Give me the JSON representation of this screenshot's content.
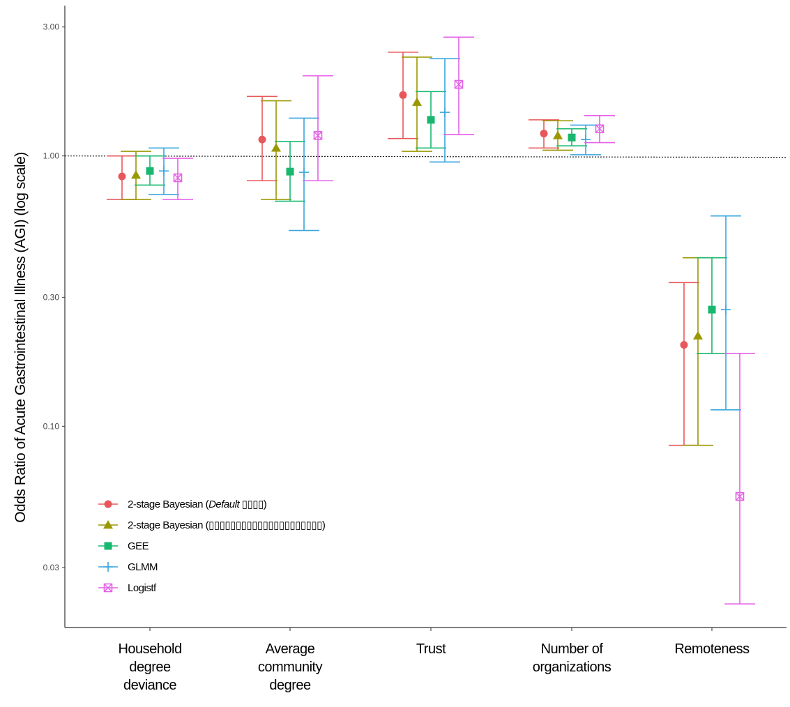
{
  "chart_data": {
    "type": "scatter",
    "subtype": "point-range (odds ratios with confidence intervals)",
    "ylabel": "Odds Ratio of Acute Gastrointestinal Illness (AGI) (log scale)",
    "xlabel": "",
    "yscale": "log",
    "ylim": [
      0.018,
      3.6
    ],
    "yticks": [
      0.03,
      0.1,
      0.3,
      1.0,
      3.0
    ],
    "ytick_labels": [
      "0.03",
      "0.10",
      "0.30",
      "1.00",
      "3.00"
    ],
    "reference_line": {
      "y": 1.0,
      "style": "dotted"
    },
    "grid": false,
    "legend_position": "bottom-left",
    "categories": [
      [
        "Household",
        "degree",
        "deviance"
      ],
      [
        "Average",
        "community",
        "degree"
      ],
      [
        "Trust"
      ],
      [
        "Number of",
        "organizations"
      ],
      [
        "Remoteness"
      ]
    ],
    "series": [
      {
        "name": "2-stage Bayesian (Default ▯▯▯▯)",
        "legend_parts": [
          "2-stage Bayesian (",
          "Default",
          " ▯▯▯▯)"
        ],
        "color": "#e8585a",
        "marker": "circle",
        "points": [
          {
            "y": 0.84,
            "lo": 0.69,
            "hi": 1.0
          },
          {
            "y": 1.15,
            "lo": 0.81,
            "hi": 1.66
          },
          {
            "y": 1.68,
            "lo": 1.16,
            "hi": 2.42
          },
          {
            "y": 1.21,
            "lo": 1.07,
            "hi": 1.36
          },
          {
            "y": 0.2,
            "lo": 0.085,
            "hi": 0.34
          }
        ]
      },
      {
        "name": "2-stage Bayesian (▯▯▯▯▯▯▯▯▯▯▯▯▯▯▯▯▯▯▯▯▯)",
        "legend_parts": [
          "2-stage Bayesian (▯▯▯▯▯▯▯▯▯▯▯▯▯▯▯▯▯▯▯▯▯)"
        ],
        "color": "#9a9800",
        "marker": "triangle",
        "points": [
          {
            "y": 0.85,
            "lo": 0.69,
            "hi": 1.04
          },
          {
            "y": 1.07,
            "lo": 0.69,
            "hi": 1.6
          },
          {
            "y": 1.58,
            "lo": 1.04,
            "hi": 2.32
          },
          {
            "y": 1.19,
            "lo": 1.05,
            "hi": 1.35
          },
          {
            "y": 0.216,
            "lo": 0.085,
            "hi": 0.42
          }
        ]
      },
      {
        "name": "GEE",
        "legend_parts": [
          "GEE"
        ],
        "color": "#18b76f",
        "marker": "square",
        "points": [
          {
            "y": 0.88,
            "lo": 0.78,
            "hi": 1.0
          },
          {
            "y": 0.875,
            "lo": 0.68,
            "hi": 1.13
          },
          {
            "y": 1.36,
            "lo": 1.07,
            "hi": 1.73
          },
          {
            "y": 1.17,
            "lo": 1.09,
            "hi": 1.26
          },
          {
            "y": 0.27,
            "lo": 0.186,
            "hi": 0.42
          }
        ]
      },
      {
        "name": "GLMM",
        "legend_parts": [
          "GLMM"
        ],
        "color": "#3aa6de",
        "marker": "plus",
        "points": [
          {
            "y": 0.88,
            "lo": 0.72,
            "hi": 1.07
          },
          {
            "y": 0.87,
            "lo": 0.53,
            "hi": 1.38
          },
          {
            "y": 1.45,
            "lo": 0.95,
            "hi": 2.29
          },
          {
            "y": 1.15,
            "lo": 1.01,
            "hi": 1.3
          },
          {
            "y": 0.27,
            "lo": 0.115,
            "hi": 0.6
          }
        ]
      },
      {
        "name": "Logistf",
        "legend_parts": [
          "Logistf"
        ],
        "color": "#e561e8",
        "marker": "crossed-square",
        "points": [
          {
            "y": 0.83,
            "lo": 0.69,
            "hi": 0.98
          },
          {
            "y": 1.19,
            "lo": 0.81,
            "hi": 1.98
          },
          {
            "y": 1.84,
            "lo": 1.2,
            "hi": 2.75
          },
          {
            "y": 1.26,
            "lo": 1.12,
            "hi": 1.41
          },
          {
            "y": 0.055,
            "lo": 0.022,
            "hi": 0.186
          }
        ]
      }
    ]
  }
}
